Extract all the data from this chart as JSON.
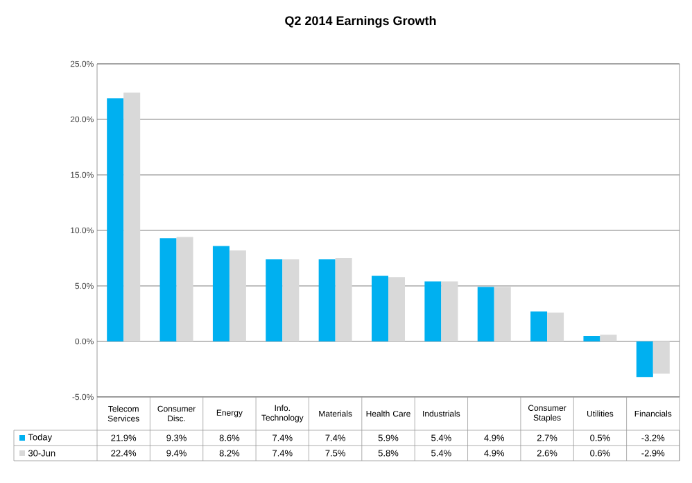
{
  "chart_data": {
    "type": "bar",
    "title": "Q2 2014 Earnings Growth",
    "categories": [
      "Telecom Services",
      "Consumer Disc.",
      "Energy",
      "Info. Technology",
      "Materials",
      "Health Care",
      "Industrials",
      null,
      "Consumer Staples",
      "Utilities",
      "Financials"
    ],
    "series": [
      {
        "name": "Today",
        "color": "#00b0f0",
        "values": [
          21.9,
          9.3,
          8.6,
          7.4,
          7.4,
          5.9,
          5.4,
          4.9,
          2.7,
          0.5,
          -3.2
        ],
        "value_labels": [
          "21.9%",
          "9.3%",
          "8.6%",
          "7.4%",
          "7.4%",
          "5.9%",
          "5.4%",
          "4.9%",
          "2.7%",
          "0.5%",
          "-3.2%"
        ]
      },
      {
        "name": "30-Jun",
        "color": "#d9d9d9",
        "values": [
          22.4,
          9.4,
          8.2,
          7.4,
          7.5,
          5.8,
          5.4,
          4.9,
          2.6,
          0.6,
          -2.9
        ],
        "value_labels": [
          "22.4%",
          "9.4%",
          "8.2%",
          "7.4%",
          "7.5%",
          "5.8%",
          "5.4%",
          "4.9%",
          "2.6%",
          "0.6%",
          "-2.9%"
        ]
      }
    ],
    "ylim": [
      -5,
      25
    ],
    "yticks": [
      {
        "value": -5,
        "label": "-5.0%"
      },
      {
        "value": 0,
        "label": "0.0%"
      },
      {
        "value": 5,
        "label": "5.0%"
      },
      {
        "value": 10,
        "label": "10.0%"
      },
      {
        "value": 15,
        "label": "15.0%"
      },
      {
        "value": 20,
        "label": "20.0%"
      },
      {
        "value": 25,
        "label": "25.0%"
      }
    ],
    "grid": "y",
    "legend": "bottom"
  }
}
